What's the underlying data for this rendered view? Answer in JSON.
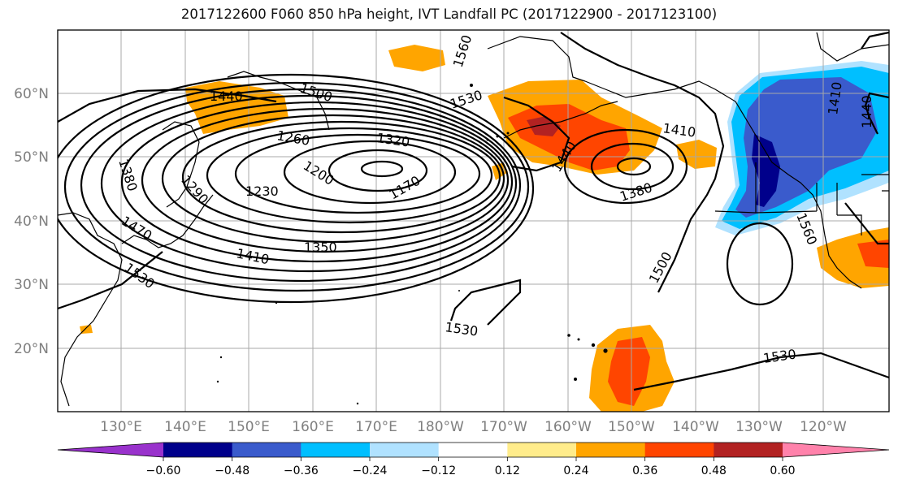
{
  "title": "2017122600 F060 850 hPa height, IVT Landfall PC (2017122900 - 2017123100)",
  "map": {
    "lat_labels": [
      "60°N",
      "50°N",
      "40°N",
      "30°N",
      "20°N"
    ],
    "lon_labels": [
      "130°E",
      "140°E",
      "150°E",
      "160°E",
      "170°E",
      "180°W",
      "170°W",
      "160°W",
      "150°W",
      "140°W",
      "130°W",
      "120°W"
    ],
    "contour_labels": [
      "1440",
      "1500",
      "1530",
      "1560",
      "1320",
      "1260",
      "1380",
      "1290",
      "1200",
      "1230",
      "1170",
      "1350",
      "1470",
      "1410",
      "1530",
      "1500",
      "1530",
      "1530",
      "1410",
      "1440",
      "1380",
      "1560",
      "1440",
      "1410"
    ],
    "contour_interval_hpa_height": 30
  },
  "colorbar": {
    "ticks": [
      "−0.60",
      "−0.48",
      "−0.36",
      "−0.24",
      "−0.12",
      "0.12",
      "0.24",
      "0.36",
      "0.48",
      "0.60"
    ],
    "colors": [
      "#9932cc",
      "#00008b",
      "#3a5bcc",
      "#00bfff",
      "#b0e2ff",
      "#ffffff",
      "#ffec8b",
      "#ffa500",
      "#ff4500",
      "#b22222",
      "#ff82ab"
    ],
    "extend": "both"
  }
}
